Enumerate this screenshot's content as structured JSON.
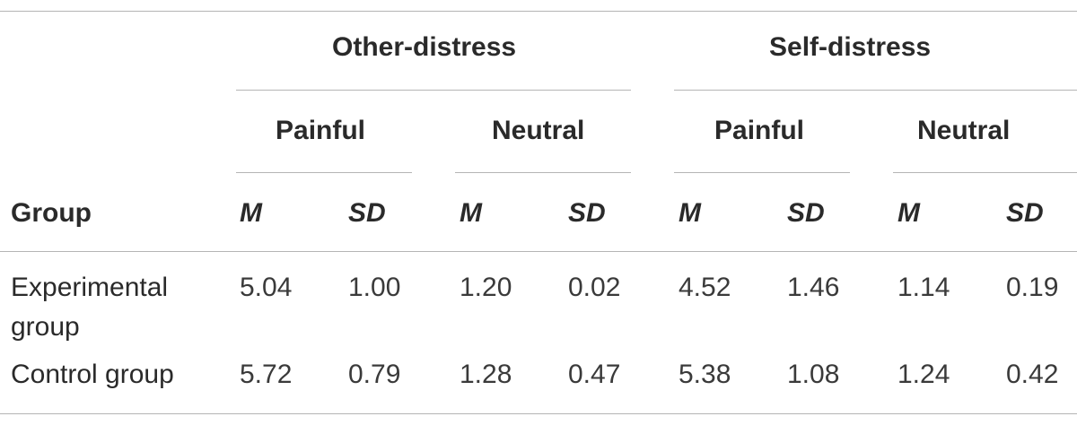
{
  "table": {
    "group_header": "Group",
    "conditions": [
      {
        "label": "Other-distress",
        "stimuli": [
          {
            "label": "Painful",
            "m_label": "M",
            "sd_label": "SD"
          },
          {
            "label": "Neutral",
            "m_label": "M",
            "sd_label": "SD"
          }
        ]
      },
      {
        "label": "Self-distress",
        "stimuli": [
          {
            "label": "Painful",
            "m_label": "M",
            "sd_label": "SD"
          },
          {
            "label": "Neutral",
            "m_label": "M",
            "sd_label": "SD"
          }
        ]
      }
    ],
    "rows": [
      {
        "group": "Experimental group",
        "values": [
          "5.04",
          "1.00",
          "1.20",
          "0.02",
          "4.52",
          "1.46",
          "1.14",
          "0.19"
        ]
      },
      {
        "group": "Control group",
        "values": [
          "5.72",
          "0.79",
          "1.28",
          "0.47",
          "5.38",
          "1.08",
          "1.24",
          "0.42"
        ]
      }
    ]
  }
}
